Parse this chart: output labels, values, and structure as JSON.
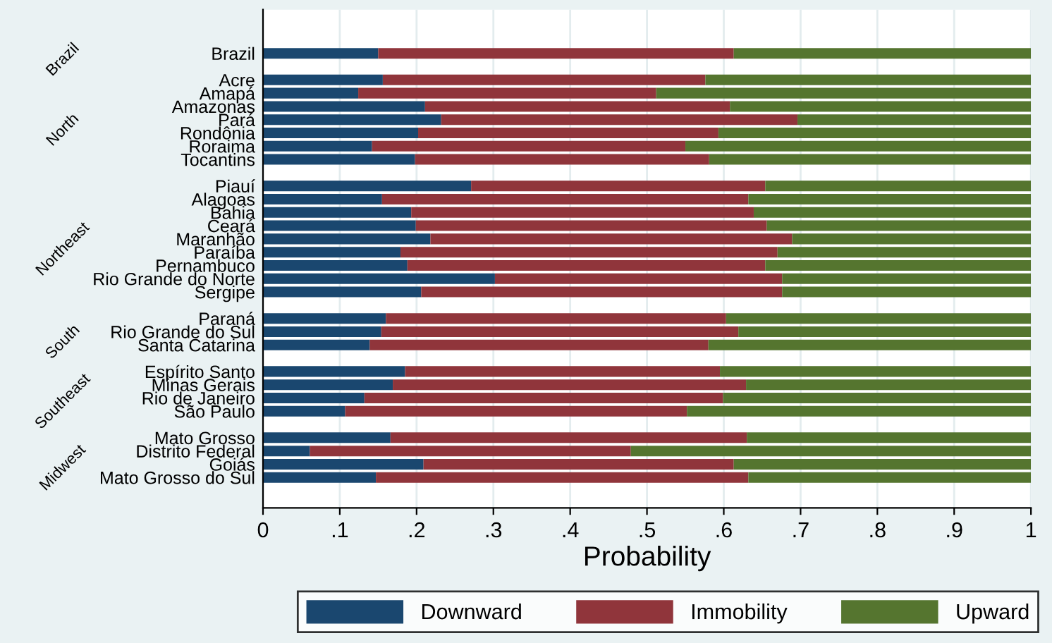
{
  "chart_data": {
    "type": "bar",
    "orientation": "horizontal",
    "stacked": true,
    "categories": [
      "Brazil",
      null,
      "Acre",
      "Amapá",
      "Amazonas",
      "Pará",
      "Rondônia",
      "Roraima",
      "Tocantins",
      null,
      "Piauí",
      "Alagoas",
      "Bahia",
      "Ceará",
      "Maranhão",
      "Paraíba",
      "Pernambuco",
      "Rio Grande do Norte",
      "Sergipe",
      null,
      "Paraná",
      "Rio Grande do Sul",
      "Santa Catarina",
      null,
      "Espírito Santo",
      "Minas Gerais",
      "Rio de Janeiro",
      "São Paulo",
      null,
      "Mato Grosso",
      "Distrito Federal",
      "Goiás",
      "Mato Grosso do Sul"
    ],
    "series": [
      {
        "name": "Downward",
        "color": "#1a476f",
        "values": [
          0.15,
          null,
          0.156,
          0.124,
          0.211,
          0.232,
          0.202,
          0.142,
          0.198,
          null,
          0.271,
          0.155,
          0.193,
          0.199,
          0.218,
          0.179,
          0.188,
          0.302,
          0.206,
          null,
          0.16,
          0.154,
          0.139,
          null,
          0.185,
          0.169,
          0.132,
          0.107,
          null,
          0.166,
          0.061,
          0.209,
          0.147
        ]
      },
      {
        "name": "Immobility",
        "color": "#90353b",
        "values": [
          0.463,
          null,
          0.42,
          0.388,
          0.397,
          0.464,
          0.391,
          0.408,
          0.383,
          null,
          0.383,
          0.477,
          0.446,
          0.457,
          0.471,
          0.491,
          0.466,
          0.374,
          0.47,
          null,
          0.443,
          0.465,
          0.441,
          null,
          0.41,
          0.46,
          0.467,
          0.445,
          null,
          0.464,
          0.418,
          0.404,
          0.485
        ]
      },
      {
        "name": "Upward",
        "color": "#55752f",
        "values": [
          0.387,
          null,
          0.424,
          0.488,
          0.392,
          0.304,
          0.407,
          0.45,
          0.419,
          null,
          0.346,
          0.368,
          0.361,
          0.344,
          0.311,
          0.33,
          0.346,
          0.324,
          0.324,
          null,
          0.397,
          0.381,
          0.42,
          null,
          0.405,
          0.371,
          0.401,
          0.448,
          null,
          0.37,
          0.521,
          0.387,
          0.368
        ]
      }
    ],
    "xlim": [
      0,
      1
    ],
    "xticks": [
      {
        "value": 0,
        "label": "0"
      },
      {
        "value": 0.1,
        "label": ".1"
      },
      {
        "value": 0.2,
        "label": ".2"
      },
      {
        "value": 0.3,
        "label": ".3"
      },
      {
        "value": 0.4,
        "label": ".4"
      },
      {
        "value": 0.5,
        "label": ".5"
      },
      {
        "value": 0.6,
        "label": ".6"
      },
      {
        "value": 0.7,
        "label": ".7"
      },
      {
        "value": 0.8,
        "label": ".8"
      },
      {
        "value": 0.9,
        "label": ".9"
      },
      {
        "value": 1,
        "label": "1"
      }
    ],
    "xlabel": "Probability",
    "grid": "x",
    "legend": "bottom",
    "annotations": [
      "Brazil",
      "North",
      "Northeast",
      "South",
      "Southeast",
      "Midwest"
    ]
  }
}
